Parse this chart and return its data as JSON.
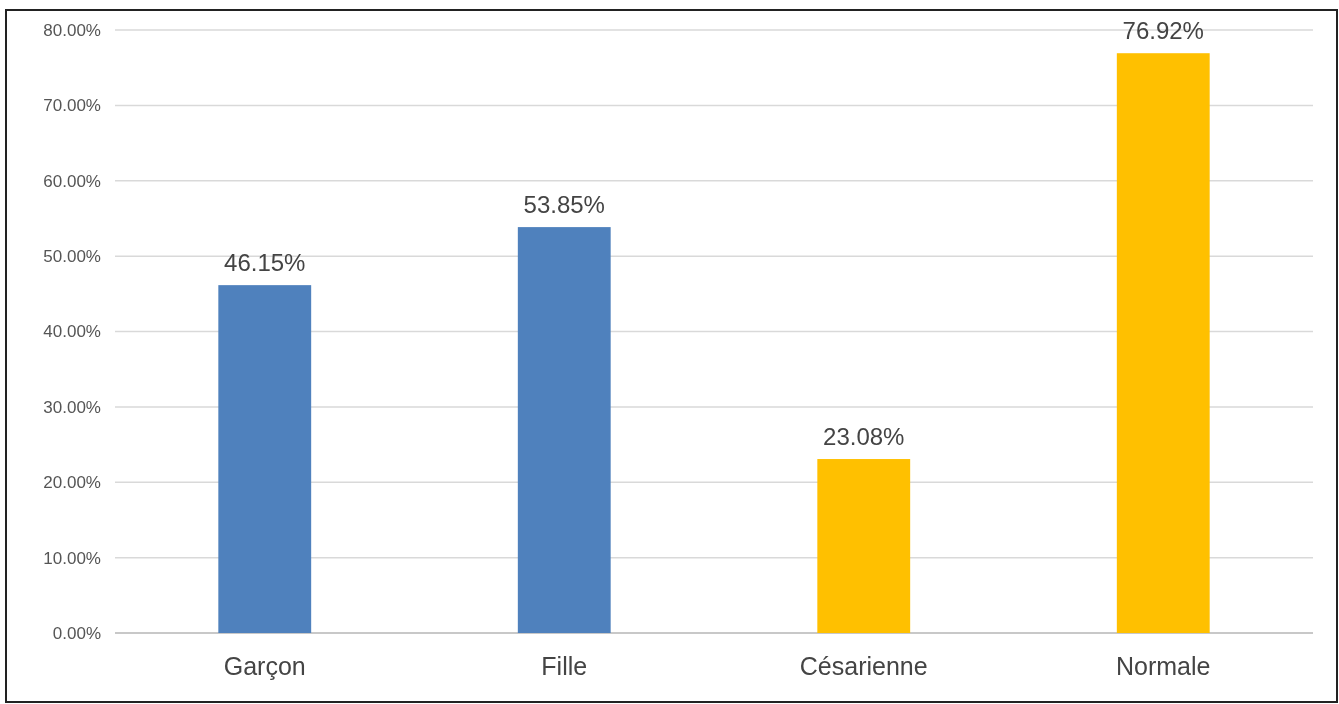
{
  "chart_data": {
    "type": "bar",
    "categories": [
      "Garçon",
      "Fille",
      "Césarienne",
      "Normale"
    ],
    "values": [
      46.15,
      53.85,
      23.08,
      76.92
    ],
    "colors": [
      "#4f81bd",
      "#4f81bd",
      "#ffc000",
      "#ffc000"
    ],
    "value_labels": [
      "46.15%",
      "53.85%",
      "23.08%",
      "76.92%"
    ],
    "ylim": [
      0,
      80
    ],
    "yticks": [
      {
        "value": 0,
        "label": "0.00%"
      },
      {
        "value": 10,
        "label": "10.00%"
      },
      {
        "value": 20,
        "label": "20.00%"
      },
      {
        "value": 30,
        "label": "30.00%"
      },
      {
        "value": 40,
        "label": "40.00%"
      },
      {
        "value": 50,
        "label": "50.00%"
      },
      {
        "value": 60,
        "label": "60.00%"
      },
      {
        "value": 70,
        "label": "70.00%"
      },
      {
        "value": 80,
        "label": "80.00%"
      }
    ],
    "grid": "y"
  }
}
